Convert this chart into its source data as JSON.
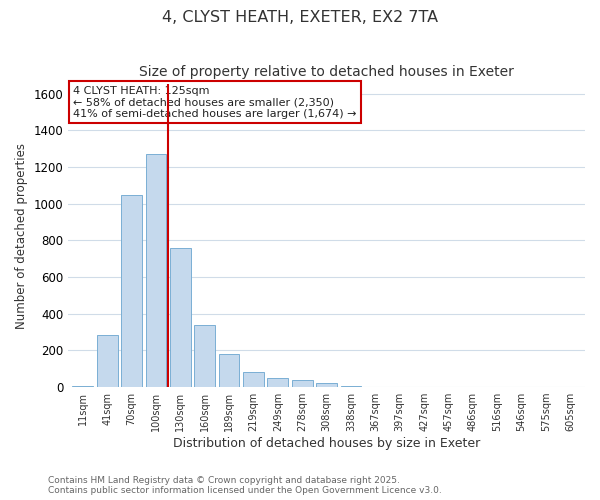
{
  "title": "4, CLYST HEATH, EXETER, EX2 7TA",
  "subtitle": "Size of property relative to detached houses in Exeter",
  "xlabel": "Distribution of detached houses by size in Exeter",
  "ylabel": "Number of detached properties",
  "bar_labels": [
    "11sqm",
    "41sqm",
    "70sqm",
    "100sqm",
    "130sqm",
    "160sqm",
    "189sqm",
    "219sqm",
    "249sqm",
    "278sqm",
    "308sqm",
    "338sqm",
    "367sqm",
    "397sqm",
    "427sqm",
    "457sqm",
    "486sqm",
    "516sqm",
    "546sqm",
    "575sqm",
    "605sqm"
  ],
  "bar_values": [
    8,
    285,
    1045,
    1270,
    760,
    340,
    180,
    83,
    50,
    40,
    22,
    5,
    0,
    0,
    0,
    0,
    0,
    0,
    0,
    0,
    0
  ],
  "bar_color": "#c5d9ed",
  "bar_edge_color": "#7aafd4",
  "vline_color": "#cc0000",
  "annotation_title": "4 CLYST HEATH: 125sqm",
  "annotation_line1": "← 58% of detached houses are smaller (2,350)",
  "annotation_line2": "41% of semi-detached houses are larger (1,674) →",
  "annotation_box_color": "#ffffff",
  "annotation_box_edge": "#cc0000",
  "ylim": [
    0,
    1650
  ],
  "yticks": [
    0,
    200,
    400,
    600,
    800,
    1000,
    1200,
    1400,
    1600
  ],
  "footnote1": "Contains HM Land Registry data © Crown copyright and database right 2025.",
  "footnote2": "Contains public sector information licensed under the Open Government Licence v3.0.",
  "page_bg_color": "#ffffff",
  "plot_bg_color": "#ffffff",
  "grid_color": "#d0dce8",
  "title_fontsize": 11.5,
  "subtitle_fontsize": 10
}
